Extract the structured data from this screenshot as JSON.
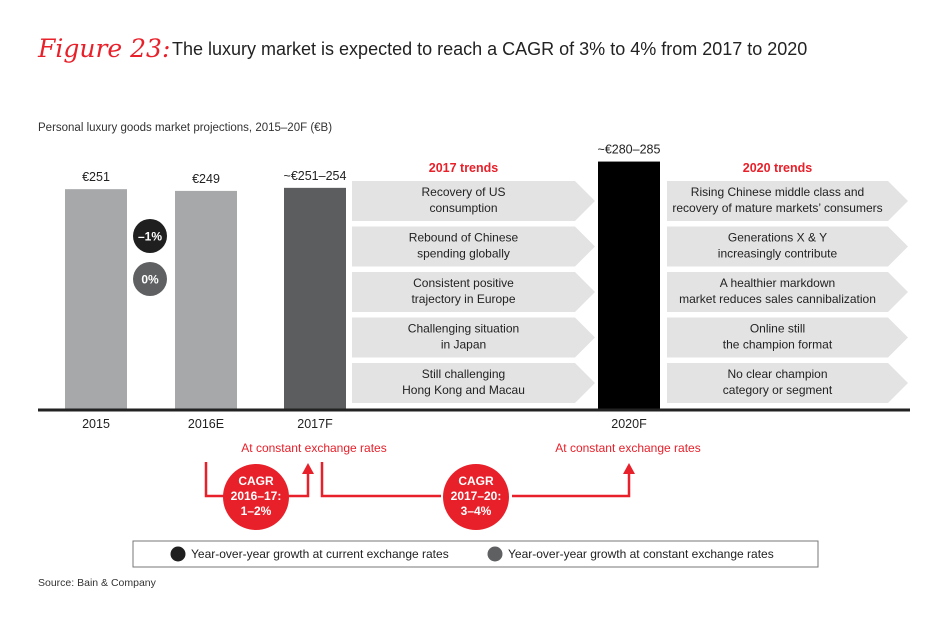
{
  "figure_label": "Figure 23:",
  "title": "The luxury market is expected to reach a CAGR of 3% to 4% from 2017 to 2020",
  "source": "Source: Bain & Company",
  "colors": {
    "accent": "#e8202a",
    "bar_light": "#a7a8aa",
    "bar_mid": "#5c5d5f",
    "bar_dark": "#000000",
    "arrow_fill": "#e3e3e4",
    "growth_current": "#1f1f1f",
    "growth_constant": "#5f6062"
  },
  "chart_data": {
    "type": "bar",
    "subtitle": "Personal luxury goods market projections, 2015–20F (€B)",
    "categories": [
      "2015",
      "2016E",
      "2017F",
      "2020F"
    ],
    "values": [
      251,
      249,
      252.5,
      282.5
    ],
    "value_labels": [
      "€251",
      "€249",
      "~€251–254",
      "~€280–285"
    ],
    "ylim": [
      0,
      290
    ],
    "growth_badges": [
      {
        "label": "–1%",
        "type": "current"
      },
      {
        "label": "0%",
        "type": "constant"
      }
    ],
    "trends": [
      {
        "title": "2017 trends",
        "items": [
          "Recovery of US|consumption",
          "Rebound of Chinese|spending globally",
          "Consistent positive|trajectory in Europe",
          "Challenging situation|in Japan",
          "Still challenging|Hong Kong and Macau"
        ]
      },
      {
        "title": "2020 trends",
        "items": [
          "Rising Chinese middle class and|recovery of mature markets’ consumers",
          "Generations X & Y|increasingly contribute",
          "A healthier markdown|market reduces sales cannibalization",
          "Online still|the champion format",
          "No clear champion|category or segment"
        ]
      }
    ],
    "annotations": [
      "At constant exchange rates",
      "At constant exchange rates"
    ],
    "cagr": [
      {
        "lines": [
          "CAGR",
          "2016–17:",
          "1–2%"
        ]
      },
      {
        "lines": [
          "CAGR",
          "2017–20:",
          "3–4%"
        ]
      }
    ],
    "legend": [
      {
        "label": "Year-over-year growth at current exchange rates",
        "type": "current"
      },
      {
        "label": "Year-over-year growth at constant exchange rates",
        "type": "constant"
      }
    ]
  }
}
